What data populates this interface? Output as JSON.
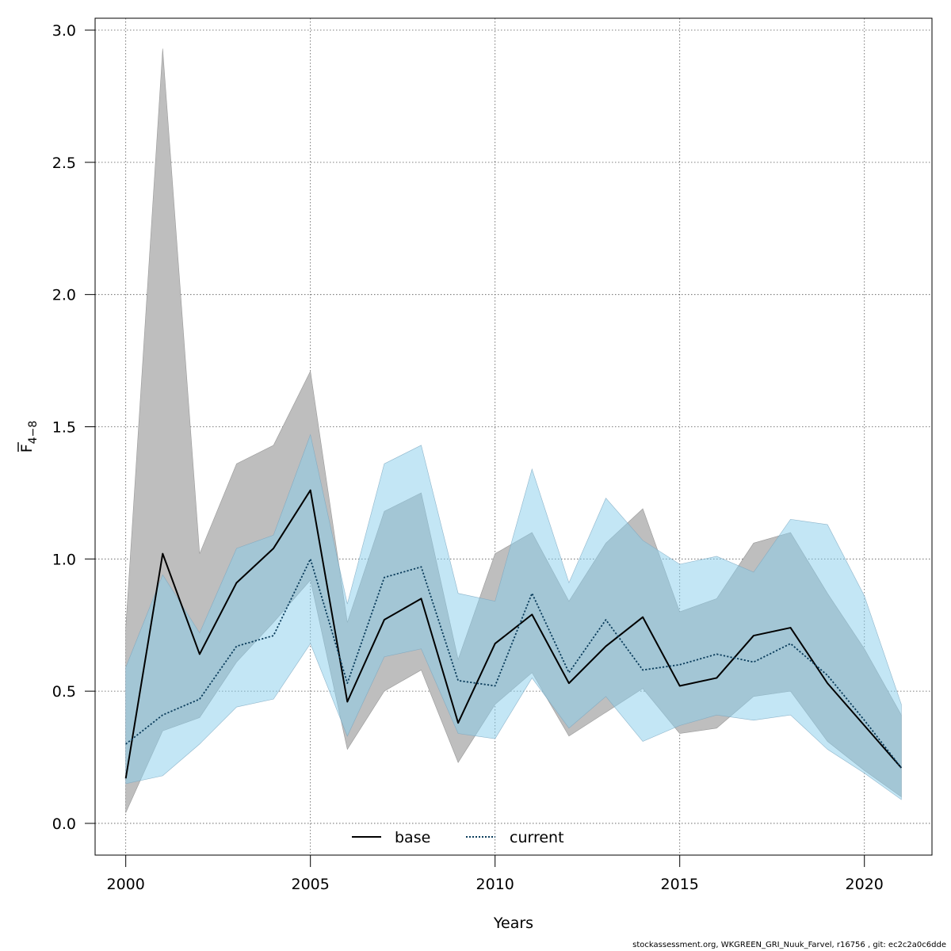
{
  "chart_data": {
    "type": "line",
    "xlabel": "Years",
    "ylabel": "F",
    "ylabel_subscript": "4−8",
    "xlim": [
      1999.17,
      2021.83
    ],
    "ylim": [
      -0.12,
      3.045
    ],
    "xticks": [
      2000,
      2005,
      2010,
      2015,
      2020
    ],
    "xtick_labels": [
      "2000",
      "2005",
      "2010",
      "2015",
      "2020"
    ],
    "yticks": [
      0.0,
      0.5,
      1.0,
      1.5,
      2.0,
      2.5,
      3.0
    ],
    "ytick_labels": [
      "0.0",
      "0.5",
      "1.0",
      "1.5",
      "2.0",
      "2.5",
      "3.0"
    ],
    "grid": true,
    "legend_position": "bottom-center",
    "x": [
      2000,
      2001,
      2002,
      2003,
      2004,
      2005,
      2006,
      2007,
      2008,
      2009,
      2010,
      2011,
      2012,
      2013,
      2014,
      2015,
      2016,
      2017,
      2018,
      2019,
      2020,
      2021
    ],
    "series": [
      {
        "name": "base",
        "line_color": "#000000",
        "band_color": "#bebebe",
        "values": [
          0.17,
          1.02,
          0.64,
          0.91,
          1.04,
          1.26,
          0.46,
          0.77,
          0.85,
          0.38,
          0.68,
          0.79,
          0.53,
          0.67,
          0.78,
          0.52,
          0.55,
          0.71,
          0.74,
          0.53,
          0.37,
          0.21
        ],
        "lower": [
          0.04,
          0.35,
          0.4,
          0.61,
          0.76,
          0.92,
          0.28,
          0.5,
          0.58,
          0.23,
          0.45,
          0.57,
          0.33,
          0.42,
          0.51,
          0.34,
          0.36,
          0.48,
          0.5,
          0.31,
          0.2,
          0.1
        ],
        "upper": [
          0.74,
          2.93,
          1.02,
          1.36,
          1.43,
          1.71,
          0.76,
          1.18,
          1.25,
          0.62,
          1.02,
          1.1,
          0.84,
          1.06,
          1.19,
          0.8,
          0.85,
          1.06,
          1.1,
          0.87,
          0.66,
          0.41
        ]
      },
      {
        "name": "current",
        "line_color": "#0b3d5c",
        "band_color": "#87ceeb",
        "values": [
          0.3,
          0.41,
          0.47,
          0.67,
          0.71,
          1.0,
          0.53,
          0.93,
          0.97,
          0.54,
          0.52,
          0.87,
          0.57,
          0.77,
          0.58,
          0.6,
          0.64,
          0.61,
          0.68,
          0.56,
          0.39,
          0.21
        ],
        "lower": [
          0.15,
          0.18,
          0.3,
          0.44,
          0.47,
          0.68,
          0.33,
          0.63,
          0.66,
          0.34,
          0.32,
          0.55,
          0.36,
          0.48,
          0.31,
          0.37,
          0.41,
          0.39,
          0.41,
          0.28,
          0.19,
          0.09
        ],
        "upper": [
          0.59,
          0.94,
          0.72,
          1.04,
          1.09,
          1.47,
          0.83,
          1.36,
          1.43,
          0.87,
          0.84,
          1.34,
          0.91,
          1.23,
          1.07,
          0.98,
          1.01,
          0.95,
          1.15,
          1.13,
          0.86,
          0.45
        ]
      }
    ]
  },
  "footer": {
    "text": "stockassessment.org, WKGREEN_GRI_Nuuk_Farvel, r16756 , git: ec2c2a0c6dde"
  }
}
